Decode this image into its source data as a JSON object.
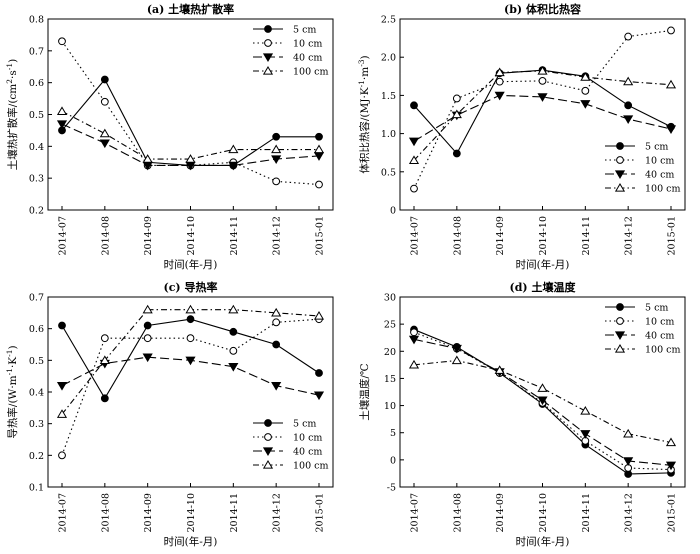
{
  "chart_data": [
    {
      "type": "line",
      "title": "(a) 土壤热扩散率",
      "xlabel": "时间(年-月)",
      "ylabel_main": "土壤热扩散率/(cm",
      "ylabel_sup1": "2",
      "ylabel_mid": "·s",
      "ylabel_sup2": "-1",
      "ylabel_end": ")",
      "categories": [
        "2014-07",
        "2014-08",
        "2014-09",
        "2014-10",
        "2014-11",
        "2014-12",
        "2015-01"
      ],
      "ylim": [
        0.2,
        0.8
      ],
      "yticks": [
        0.2,
        0.3,
        0.4,
        0.5,
        0.6,
        0.7,
        0.8
      ],
      "ytick_labels": [
        "0.2",
        "0.3",
        "0.4",
        "0.5",
        "0.6",
        "0.7",
        "0.8"
      ],
      "legend_position": "top-right",
      "series": [
        {
          "name": "5 cm",
          "values": [
            0.45,
            0.61,
            0.35,
            0.34,
            0.34,
            0.43,
            0.43
          ]
        },
        {
          "name": "10 cm",
          "values": [
            0.73,
            0.54,
            0.34,
            0.34,
            0.35,
            0.29,
            0.28
          ]
        },
        {
          "name": "40 cm",
          "values": [
            0.47,
            0.41,
            0.34,
            0.34,
            0.34,
            0.36,
            0.37
          ]
        },
        {
          "name": "100 cm",
          "values": [
            0.51,
            0.44,
            0.36,
            0.36,
            0.39,
            0.39,
            0.39
          ]
        }
      ]
    },
    {
      "type": "line",
      "title": "(b) 体积比热容",
      "xlabel": "时间(年-月)",
      "ylabel_main": "体积比热容/(MJ·K",
      "ylabel_sup1": "-1",
      "ylabel_mid": "·m",
      "ylabel_sup2": "-3",
      "ylabel_end": ")",
      "categories": [
        "2014-07",
        "2014-08",
        "2014-09",
        "2014-10",
        "2014-11",
        "2014-12",
        "2015-01"
      ],
      "ylim": [
        0,
        2.5
      ],
      "yticks": [
        0,
        0.5,
        1.0,
        1.5,
        2.0,
        2.5
      ],
      "ytick_labels": [
        "0",
        "0.5",
        "1.0",
        "1.5",
        "2.0",
        "2.5"
      ],
      "legend_position": "bottom-right",
      "series": [
        {
          "name": "5 cm",
          "values": [
            1.37,
            0.74,
            1.79,
            1.83,
            1.75,
            1.37,
            1.09
          ]
        },
        {
          "name": "10 cm",
          "values": [
            0.28,
            1.46,
            1.68,
            1.69,
            1.56,
            2.27,
            2.35
          ]
        },
        {
          "name": "40 cm",
          "values": [
            0.9,
            1.24,
            1.5,
            1.48,
            1.39,
            1.19,
            1.06
          ]
        },
        {
          "name": "100 cm",
          "values": [
            0.65,
            1.25,
            1.8,
            1.82,
            1.74,
            1.68,
            1.64
          ]
        }
      ]
    },
    {
      "type": "line",
      "title": "(c) 导热率",
      "xlabel": "时间(年-月)",
      "ylabel_main": "导热率/(W·m",
      "ylabel_sup1": "-1",
      "ylabel_mid": "·K",
      "ylabel_sup2": "-1",
      "ylabel_end": ")",
      "categories": [
        "2014-07",
        "2014-08",
        "2014-09",
        "2014-10",
        "2014-11",
        "2014-12",
        "2015-01"
      ],
      "ylim": [
        0.1,
        0.7
      ],
      "yticks": [
        0.1,
        0.2,
        0.3,
        0.4,
        0.5,
        0.6,
        0.7
      ],
      "ytick_labels": [
        "0.1",
        "0.2",
        "0.3",
        "0.4",
        "0.5",
        "0.6",
        "0.7"
      ],
      "legend_position": "bottom-right",
      "series": [
        {
          "name": "5 cm",
          "values": [
            0.61,
            0.38,
            0.61,
            0.63,
            0.59,
            0.55,
            0.46
          ]
        },
        {
          "name": "10 cm",
          "values": [
            0.2,
            0.57,
            0.57,
            0.57,
            0.53,
            0.62,
            0.63
          ]
        },
        {
          "name": "40 cm",
          "values": [
            0.42,
            0.49,
            0.51,
            0.5,
            0.48,
            0.42,
            0.39
          ]
        },
        {
          "name": "100 cm",
          "values": [
            0.33,
            0.5,
            0.66,
            0.66,
            0.66,
            0.65,
            0.64
          ]
        }
      ]
    },
    {
      "type": "line",
      "title": "(d) 土壤温度",
      "xlabel": "时间(年-月)",
      "ylabel_main": "土壤温度/℃",
      "ylabel_sup1": "",
      "ylabel_mid": "",
      "ylabel_sup2": "",
      "ylabel_end": "",
      "categories": [
        "2014-07",
        "2014-08",
        "2014-09",
        "2014-10",
        "2014-11",
        "2014-12",
        "2015-01"
      ],
      "ylim": [
        -5,
        30
      ],
      "yticks": [
        -5,
        0,
        5,
        10,
        15,
        20,
        25,
        30
      ],
      "ytick_labels": [
        "-5",
        "0",
        "5",
        "10",
        "15",
        "20",
        "25",
        "30"
      ],
      "legend_position": "top-right",
      "series": [
        {
          "name": "5 cm",
          "values": [
            24.0,
            20.8,
            16.0,
            10.3,
            2.8,
            -2.6,
            -2.4
          ]
        },
        {
          "name": "10 cm",
          "values": [
            23.5,
            20.5,
            16.0,
            10.5,
            3.5,
            -1.5,
            -1.8
          ]
        },
        {
          "name": "40 cm",
          "values": [
            22.2,
            20.5,
            16.2,
            11.0,
            4.8,
            -0.2,
            -1.0
          ]
        },
        {
          "name": "100 cm",
          "values": [
            17.5,
            18.3,
            16.5,
            13.2,
            9.0,
            4.8,
            3.2
          ]
        }
      ]
    }
  ]
}
